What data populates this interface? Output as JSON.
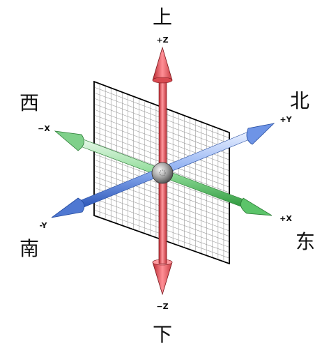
{
  "directions": {
    "up": "上",
    "down": "下",
    "north": "北",
    "south": "南",
    "east": "东",
    "west": "西"
  },
  "axes": {
    "pos_z": "+Z",
    "neg_z": "−Z",
    "pos_y": "+Y",
    "neg_y": "-Y",
    "pos_x": "+X",
    "neg_x": "−X"
  },
  "colors": {
    "z_axis": "#e0434a",
    "y_axis": "#3f67c6",
    "x_axis": "#3cae4c",
    "grid": "#9a9a9a"
  }
}
